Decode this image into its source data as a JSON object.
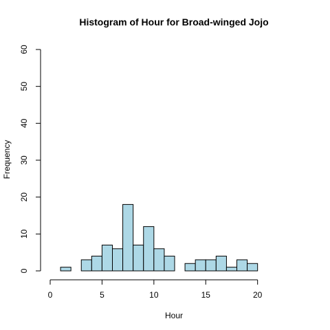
{
  "chart_data": {
    "type": "bar",
    "title": "Histogram of Hour for Broad-winged Jojo",
    "xlabel": "Hour",
    "ylabel": "Frequency",
    "xlim": [
      0,
      24
    ],
    "ylim": [
      0,
      60
    ],
    "x_ticks": [
      "0",
      "5",
      "10",
      "15",
      "20"
    ],
    "y_ticks": [
      "0",
      "10",
      "20",
      "30",
      "40",
      "50",
      "60"
    ],
    "bin_width": 1,
    "bins": [
      {
        "start": 1,
        "end": 2,
        "count": 1
      },
      {
        "start": 2,
        "end": 3,
        "count": 0
      },
      {
        "start": 3,
        "end": 4,
        "count": 3
      },
      {
        "start": 4,
        "end": 5,
        "count": 4
      },
      {
        "start": 5,
        "end": 6,
        "count": 7
      },
      {
        "start": 6,
        "end": 7,
        "count": 6
      },
      {
        "start": 7,
        "end": 8,
        "count": 18
      },
      {
        "start": 8,
        "end": 9,
        "count": 7
      },
      {
        "start": 9,
        "end": 10,
        "count": 12
      },
      {
        "start": 10,
        "end": 11,
        "count": 6
      },
      {
        "start": 11,
        "end": 12,
        "count": 4
      },
      {
        "start": 12,
        "end": 13,
        "count": 0
      },
      {
        "start": 13,
        "end": 14,
        "count": 2
      },
      {
        "start": 14,
        "end": 15,
        "count": 3
      },
      {
        "start": 15,
        "end": 16,
        "count": 3
      },
      {
        "start": 16,
        "end": 17,
        "count": 4
      },
      {
        "start": 17,
        "end": 18,
        "count": 1
      },
      {
        "start": 18,
        "end": 19,
        "count": 3
      },
      {
        "start": 19,
        "end": 20,
        "count": 2
      }
    ],
    "bar_color": "#add8e6",
    "grid": false
  }
}
